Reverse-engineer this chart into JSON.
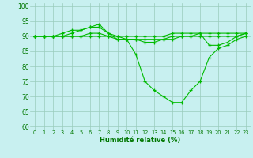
{
  "title": "",
  "xlabel": "Humidité relative (%)",
  "ylabel": "",
  "bg_color": "#c8f0f0",
  "line_color": "#00bb00",
  "grid_color": "#99ccbb",
  "xticks": [
    0,
    1,
    2,
    3,
    4,
    5,
    6,
    7,
    8,
    9,
    10,
    11,
    12,
    13,
    14,
    15,
    16,
    17,
    18,
    19,
    20,
    21,
    22,
    23
  ],
  "yticks": [
    60,
    65,
    70,
    75,
    80,
    85,
    90,
    95,
    100
  ],
  "ylim": [
    59,
    101
  ],
  "xlim": [
    -0.5,
    23.5
  ],
  "series": [
    [
      90,
      90,
      90,
      91,
      92,
      92,
      93,
      93,
      91,
      90,
      89,
      84,
      75,
      72,
      70,
      68,
      68,
      72,
      75,
      83,
      86,
      87,
      89,
      90
    ],
    [
      90,
      90,
      90,
      90,
      91,
      92,
      93,
      94,
      91,
      89,
      89,
      89,
      88,
      88,
      89,
      89,
      90,
      90,
      91,
      87,
      87,
      88,
      90,
      91
    ],
    [
      90,
      90,
      90,
      90,
      90,
      90,
      91,
      91,
      90,
      90,
      90,
      90,
      90,
      90,
      90,
      91,
      91,
      91,
      91,
      91,
      91,
      91,
      91,
      91
    ],
    [
      90,
      90,
      90,
      90,
      90,
      90,
      90,
      90,
      90,
      89,
      89,
      89,
      89,
      89,
      89,
      90,
      90,
      90,
      90,
      90,
      90,
      90,
      90,
      91
    ]
  ]
}
